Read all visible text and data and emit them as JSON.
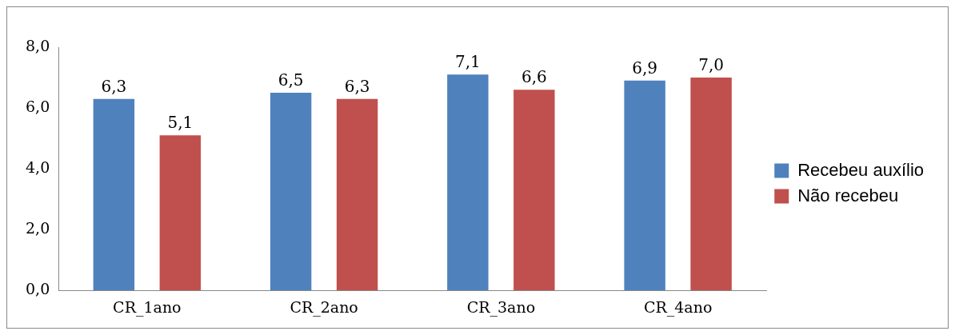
{
  "chart_data": {
    "type": "bar",
    "categories": [
      "CR_1ano",
      "CR_2ano",
      "CR_3ano",
      "CR_4ano"
    ],
    "series": [
      {
        "name": "Recebeu auxílio",
        "color": "#4f81bd",
        "values": [
          6.3,
          6.5,
          7.1,
          6.9
        ],
        "value_labels": [
          "6,3",
          "6,5",
          "7,1",
          "6,9"
        ]
      },
      {
        "name": "Não recebeu",
        "color": "#c0504d",
        "values": [
          5.1,
          6.3,
          6.6,
          7.0
        ],
        "value_labels": [
          "5,1",
          "6,3",
          "6,6",
          "7,0"
        ]
      }
    ],
    "ylim": [
      0,
      8
    ],
    "yticks": [
      {
        "value": 0,
        "label": "0,0"
      },
      {
        "value": 2,
        "label": "2,0"
      },
      {
        "value": 4,
        "label": "4,0"
      },
      {
        "value": 6,
        "label": "6,0"
      },
      {
        "value": 8,
        "label": "8,0"
      }
    ],
    "grid": false,
    "legend": "right"
  }
}
